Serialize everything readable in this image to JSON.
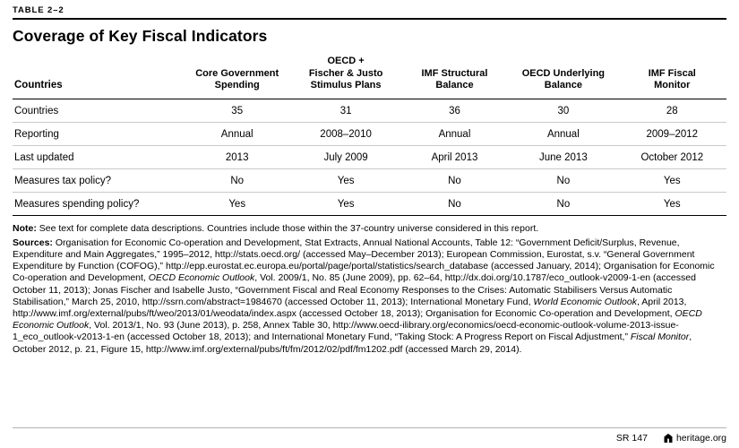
{
  "page": {
    "table_label": "TABLE 2–2",
    "title": "Coverage of Key Fiscal Indicators"
  },
  "table": {
    "header": {
      "row_label": "Countries",
      "columns": [
        "Core Government\nSpending",
        "OECD +\nFischer & Justo\nStimulus Plans",
        "IMF Structural\nBalance",
        "OECD Underlying\nBalance",
        "IMF Fiscal\nMonitor"
      ]
    },
    "rows": [
      {
        "label": "Countries",
        "values": [
          "35",
          "31",
          "36",
          "30",
          "28"
        ]
      },
      {
        "label": "Reporting",
        "values": [
          "Annual",
          "2008–2010",
          "Annual",
          "Annual",
          "2009–2012"
        ]
      },
      {
        "label": "Last updated",
        "values": [
          "2013",
          "July 2009",
          "April 2013",
          "June 2013",
          "October 2012"
        ]
      },
      {
        "label": "Measures tax policy?",
        "values": [
          "No",
          "Yes",
          "No",
          "No",
          "Yes"
        ]
      },
      {
        "label": "Measures spending policy?",
        "values": [
          "Yes",
          "Yes",
          "No",
          "No",
          "Yes"
        ]
      }
    ]
  },
  "note": {
    "label": "Note:",
    "text": "See text for complete data descriptions. Countries include those within the 37-country universe considered in this report."
  },
  "sources": {
    "label": "Sources:",
    "segments": [
      {
        "text": "Organisation for Economic Co-operation and Development, Stat Extracts, Annual National Accounts, Table 12: “Government Deficit/Surplus, Revenue, Expenditure and Main Aggregates,” 1995–2012, http://stats.oecd.org/ (accessed May–December 2013); European Commission, Eurostat, s.v. “General Government Expenditure by Function (COFOG),” http://epp.eurostat.ec.europa.eu/portal/page/portal/statistics/search_database (accessed January, 2014); Organisation for Economic Co-operation and Development, ",
        "italic": false
      },
      {
        "text": "OECD Economic Outlook",
        "italic": true
      },
      {
        "text": ", Vol. 2009/1, No. 85 (June 2009), pp. 62–64, http://dx.doi.org/10.1787/eco_outlook-v2009-1-en (accessed October 11, 2013); Jonas Fischer and Isabelle Justo, “Government Fiscal and Real Economy Responses to the Crises: Automatic Stabilisers Versus Automatic Stabilisation,” March 25, 2010, http://ssrn.com/abstract=1984670 (accessed October 11, 2013); International Monetary Fund, ",
        "italic": false
      },
      {
        "text": "World Economic Outlook",
        "italic": true
      },
      {
        "text": ", April 2013, http://www.imf.org/external/pubs/ft/weo/2013/01/weodata/index.aspx (accessed October 18, 2013); Organisation for Economic Co-operation and Development, ",
        "italic": false
      },
      {
        "text": "OECD Economic Outlook",
        "italic": true
      },
      {
        "text": ", Vol. 2013/1, No. 93 (June 2013), p. 258, Annex Table 30, http://www.oecd-ilibrary.org/economics/oecd-economic-outlook-volume-2013-issue-1_eco_outlook-v2013-1-en (accessed October 18, 2013); and International Monetary Fund, “Taking Stock: A Progress Report on Fiscal Adjustment,” ",
        "italic": false
      },
      {
        "text": "Fiscal Monitor",
        "italic": true
      },
      {
        "text": ", October 2012, p. 21, Figure 15, http://www.imf.org/external/pubs/ft/fm/2012/02/pdf/fm1202.pdf (accessed March 29, 2014).",
        "italic": false
      }
    ]
  },
  "footer": {
    "report_id": "SR 147",
    "site": "heritage.org"
  }
}
